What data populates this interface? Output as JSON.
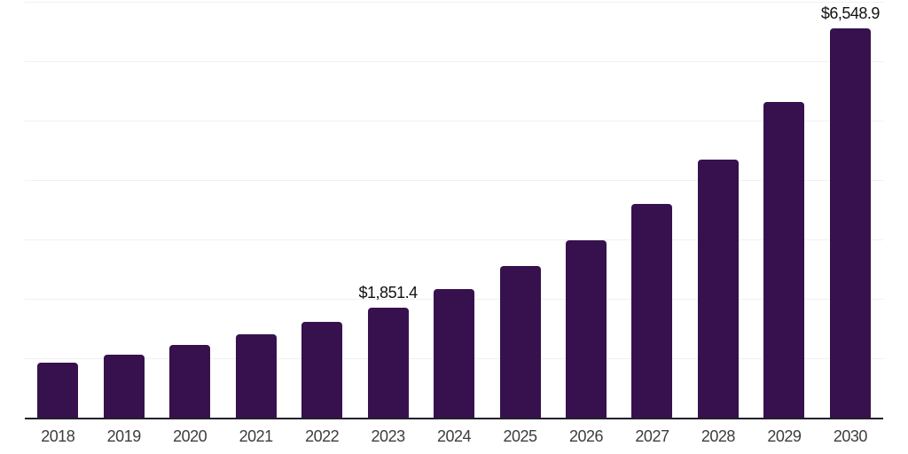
{
  "chart_data": {
    "type": "bar",
    "title": "",
    "xlabel": "",
    "ylabel": "",
    "categories": [
      "2018",
      "2019",
      "2020",
      "2021",
      "2022",
      "2023",
      "2024",
      "2025",
      "2026",
      "2027",
      "2028",
      "2029",
      "2030"
    ],
    "values": [
      920,
      1065,
      1220,
      1400,
      1610,
      1851.4,
      2170,
      2545,
      2990,
      3590,
      4340,
      5310,
      6548.9
    ],
    "data_labels": [
      {
        "category": "2023",
        "text": "$1,851.4"
      },
      {
        "category": "2030",
        "text": "$6,548.9"
      }
    ],
    "ylim": [
      0,
      7000
    ],
    "gridline_step": 1000,
    "gridline_count": 7,
    "legend": "none",
    "grid": "horizontal-light",
    "y_axis_tick_labels_visible": false
  },
  "colors": {
    "bar_fill": "#37114e",
    "axis_line": "#231f29",
    "gridline": "#f1f1f3",
    "x_label_text": "#3d3d3d",
    "data_label_text": "#111111",
    "background": "#ffffff"
  }
}
